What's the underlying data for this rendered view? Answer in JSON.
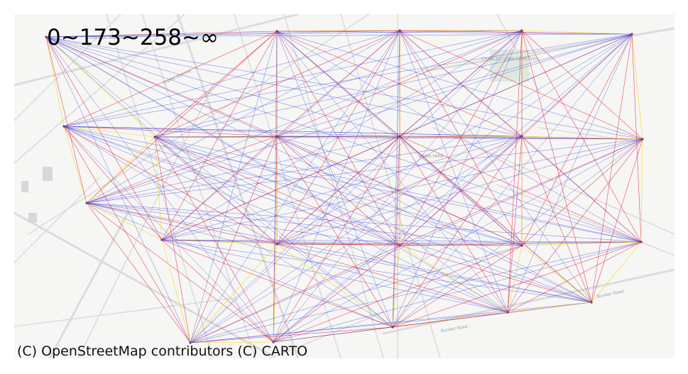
{
  "map": {
    "legend_label": "0~173~258~∞",
    "attribution": "(C) OpenStreetMap contributors (C) CARTO",
    "basemap_labels": [
      {
        "id": "cemetery",
        "text": "CHARLESTOWN CEMETERY"
      },
      {
        "id": "park",
        "text": "SWAN PARK"
      },
      {
        "id": "road-1",
        "text": "Bunker Road"
      },
      {
        "id": "road-2",
        "text": "Bunker Road"
      },
      {
        "id": "road-3",
        "text": "Edwards Avenue"
      },
      {
        "id": "road-4",
        "text": "Clarke Avenue"
      }
    ],
    "colors": {
      "background": "#f6f6f4",
      "road": "#dcdcdc",
      "band_low": "#f5d800",
      "band_mid": "#dc143c",
      "band_high": "#2a3ae0"
    },
    "distance_bands": [
      {
        "label": "0~173",
        "color": "#f5d800"
      },
      {
        "label": "173~258",
        "color": "#dc143c"
      },
      {
        "label": "258~∞",
        "color": "#2a3ae0"
      }
    ]
  }
}
